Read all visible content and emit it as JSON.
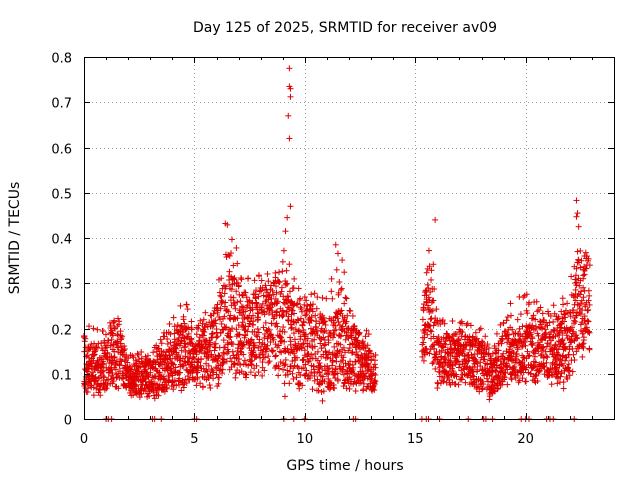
{
  "chart_data": {
    "type": "scatter",
    "title": "Day 125 of 2025, SRMTID for receiver av09",
    "xlabel": "GPS time / hours",
    "ylabel": "SRMTID / TECUs",
    "xlim": [
      0,
      24.0
    ],
    "ylim": [
      0,
      0.8
    ],
    "xticks": [
      "0",
      "5",
      "10",
      "15",
      "20"
    ],
    "yticks": [
      "0",
      "0.1",
      "0.2",
      "0.3",
      "0.4",
      "0.5",
      "0.6",
      "0.7",
      "0.8"
    ],
    "grid": true,
    "marker": "plus",
    "color": "#e00000",
    "series": [
      {
        "name": "SRMTID",
        "data_gaps_hours": [
          [
            13.2,
            15.3
          ],
          [
            22.9,
            24.0
          ]
        ],
        "envelope": [
          {
            "x": 0.0,
            "low": 0.04,
            "mid": 0.12,
            "high": 0.21
          },
          {
            "x": 0.5,
            "low": 0.05,
            "mid": 0.11,
            "high": 0.2
          },
          {
            "x": 1.0,
            "low": 0.05,
            "mid": 0.12,
            "high": 0.2
          },
          {
            "x": 1.5,
            "low": 0.07,
            "mid": 0.16,
            "high": 0.25
          },
          {
            "x": 2.0,
            "low": 0.05,
            "mid": 0.09,
            "high": 0.15
          },
          {
            "x": 3.0,
            "low": 0.04,
            "mid": 0.09,
            "high": 0.15
          },
          {
            "x": 4.0,
            "low": 0.06,
            "mid": 0.12,
            "high": 0.22
          },
          {
            "x": 4.5,
            "low": 0.06,
            "mid": 0.15,
            "high": 0.28
          },
          {
            "x": 5.0,
            "low": 0.07,
            "mid": 0.12,
            "high": 0.2
          },
          {
            "x": 6.0,
            "low": 0.06,
            "mid": 0.17,
            "high": 0.27
          },
          {
            "x": 6.5,
            "low": 0.08,
            "mid": 0.22,
            "high": 0.43
          },
          {
            "x": 7.5,
            "low": 0.09,
            "mid": 0.19,
            "high": 0.32
          },
          {
            "x": 8.5,
            "low": 0.09,
            "mid": 0.21,
            "high": 0.34
          },
          {
            "x": 9.0,
            "low": 0.08,
            "mid": 0.22,
            "high": 0.45
          },
          {
            "x": 9.5,
            "low": 0.06,
            "mid": 0.17,
            "high": 0.32
          },
          {
            "x": 10.0,
            "low": 0.07,
            "mid": 0.18,
            "high": 0.3
          },
          {
            "x": 11.0,
            "low": 0.04,
            "mid": 0.14,
            "high": 0.27
          },
          {
            "x": 11.6,
            "low": 0.05,
            "mid": 0.16,
            "high": 0.39
          },
          {
            "x": 12.0,
            "low": 0.06,
            "mid": 0.15,
            "high": 0.25
          },
          {
            "x": 13.2,
            "low": 0.05,
            "mid": 0.1,
            "high": 0.17
          },
          {
            "x": 15.3,
            "low": 0.1,
            "mid": 0.17,
            "high": 0.23
          },
          {
            "x": 15.7,
            "low": 0.14,
            "mid": 0.28,
            "high": 0.44
          },
          {
            "x": 16.0,
            "low": 0.06,
            "mid": 0.13,
            "high": 0.22
          },
          {
            "x": 17.0,
            "low": 0.07,
            "mid": 0.14,
            "high": 0.22
          },
          {
            "x": 18.0,
            "low": 0.05,
            "mid": 0.12,
            "high": 0.2
          },
          {
            "x": 18.5,
            "low": 0.04,
            "mid": 0.09,
            "high": 0.16
          },
          {
            "x": 19.0,
            "low": 0.07,
            "mid": 0.14,
            "high": 0.25
          },
          {
            "x": 20.0,
            "low": 0.08,
            "mid": 0.15,
            "high": 0.28
          },
          {
            "x": 21.0,
            "low": 0.08,
            "mid": 0.16,
            "high": 0.24
          },
          {
            "x": 22.0,
            "low": 0.06,
            "mid": 0.16,
            "high": 0.3
          },
          {
            "x": 22.3,
            "low": 0.12,
            "mid": 0.25,
            "high": 0.48
          },
          {
            "x": 22.9,
            "low": 0.13,
            "mid": 0.26,
            "high": 0.34
          }
        ],
        "notable_points": [
          {
            "x": 9.3,
            "y": 0.775
          },
          {
            "x": 9.3,
            "y": 0.735
          },
          {
            "x": 9.35,
            "y": 0.73
          },
          {
            "x": 9.35,
            "y": 0.712
          },
          {
            "x": 9.25,
            "y": 0.67
          },
          {
            "x": 9.3,
            "y": 0.62
          },
          {
            "x": 9.35,
            "y": 0.47
          },
          {
            "x": 9.2,
            "y": 0.445
          },
          {
            "x": 6.4,
            "y": 0.432
          },
          {
            "x": 15.9,
            "y": 0.44
          },
          {
            "x": 22.3,
            "y": 0.483
          },
          {
            "x": 22.35,
            "y": 0.455
          },
          {
            "x": 22.3,
            "y": 0.447
          },
          {
            "x": 22.4,
            "y": 0.425
          },
          {
            "x": 22.35,
            "y": 0.37
          },
          {
            "x": 11.4,
            "y": 0.385
          },
          {
            "x": 9.1,
            "y": 0.05
          },
          {
            "x": 10.8,
            "y": 0.04
          }
        ],
        "zero_points_x": [
          1.0,
          1.1,
          1.25,
          3.1,
          3.2,
          3.5,
          5.0,
          5.1,
          9.05,
          9.5,
          10.0,
          12.2,
          12.3,
          15.3,
          15.5,
          15.6,
          16.1,
          17.4,
          18.1,
          18.2,
          18.5,
          19.8,
          20.0,
          20.15,
          20.95,
          21.1,
          21.25,
          22.2
        ]
      }
    ]
  }
}
